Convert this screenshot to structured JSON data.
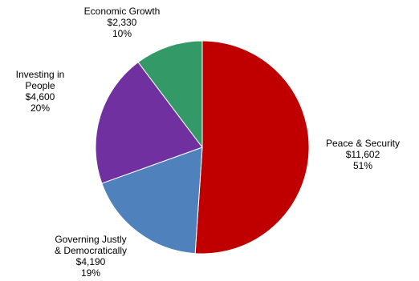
{
  "chart_data": {
    "type": "pie",
    "slices": [
      {
        "label": "Peace & Security",
        "label_lines": [
          "Peace & Security"
        ],
        "amount_text": "$11,602",
        "value": 11602,
        "percent_text": "51%",
        "color": "#C00000"
      },
      {
        "label": "Governing Justly & Democratically",
        "label_lines": [
          "Governing Justly",
          "& Democratically"
        ],
        "amount_text": "$4,190",
        "value": 4190,
        "percent_text": "19%",
        "color": "#4F81BD"
      },
      {
        "label": "Investing in People",
        "label_lines": [
          "Investing in",
          "People"
        ],
        "amount_text": "$4,600",
        "value": 4600,
        "percent_text": "20%",
        "color": "#7030A0"
      },
      {
        "label": "Economic Growth",
        "label_lines": [
          "Economic Growth"
        ],
        "amount_text": "$2,330",
        "value": 2330,
        "percent_text": "10%",
        "color": "#339966"
      }
    ],
    "start_angle_deg": 0,
    "direction": "clockwise",
    "legend": "none"
  }
}
